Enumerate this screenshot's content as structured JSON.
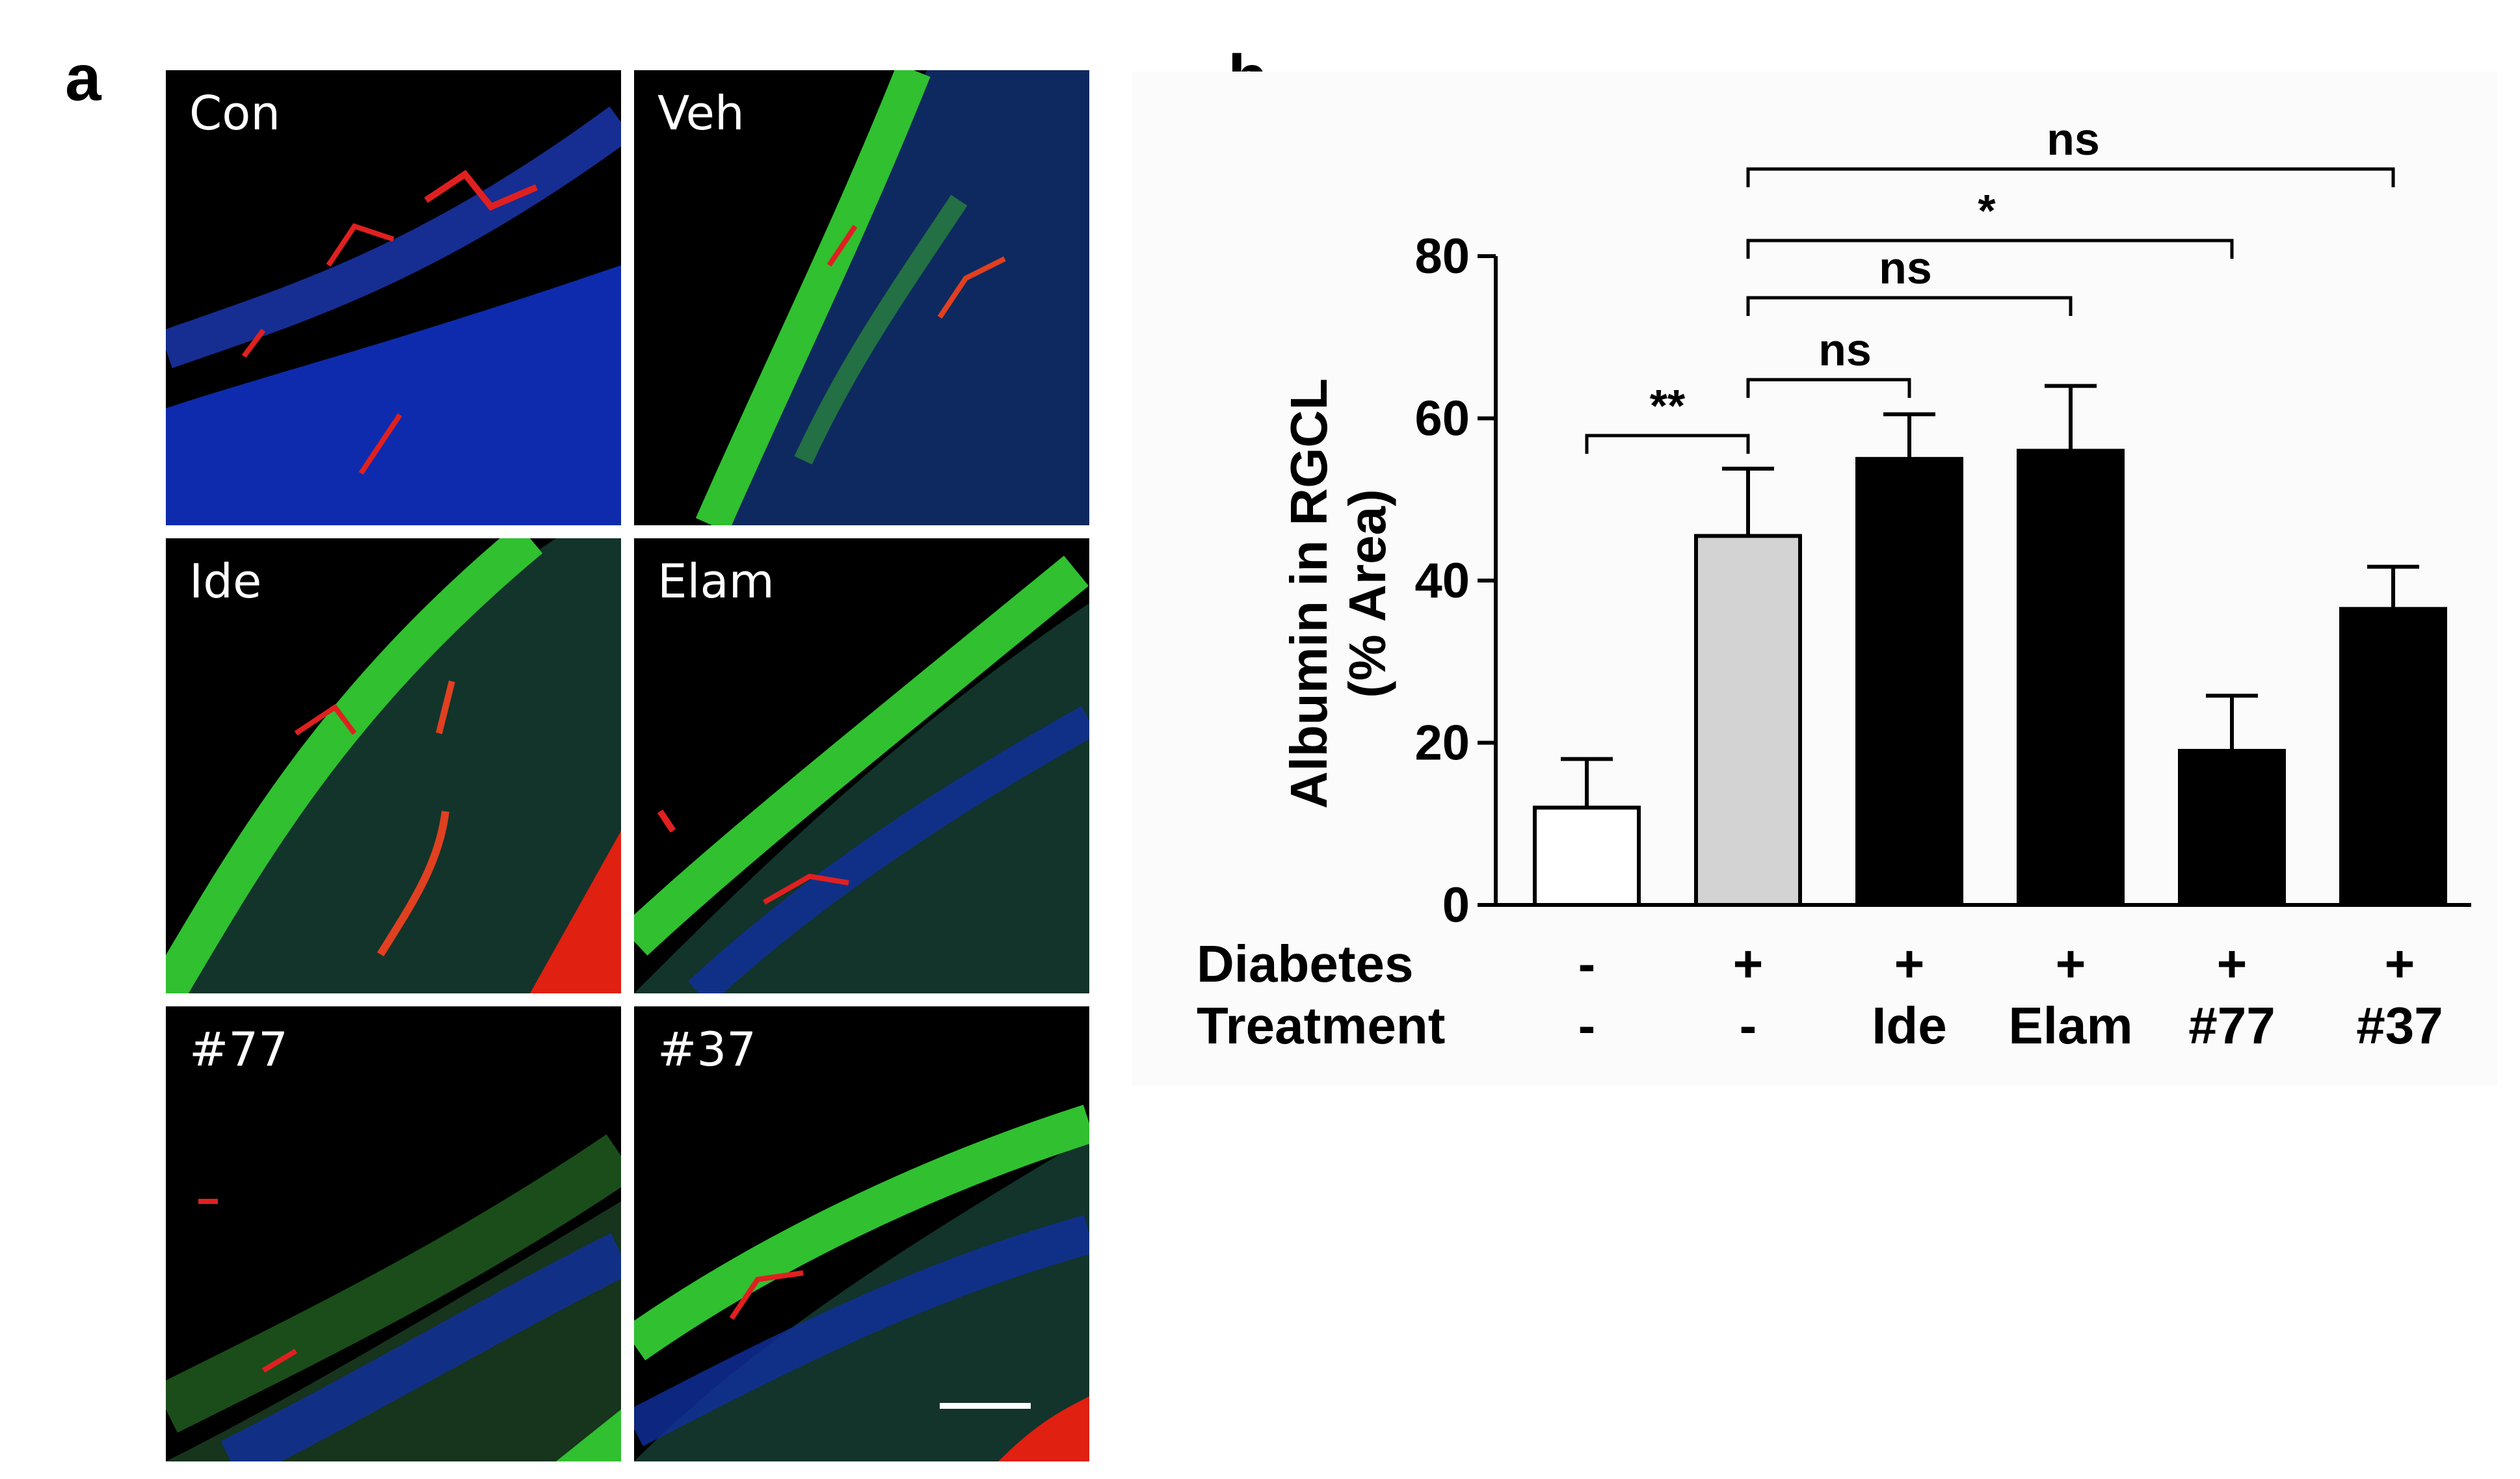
{
  "panel_a": {
    "letter": "a",
    "panels": [
      {
        "label": "Con"
      },
      {
        "label": "Veh"
      },
      {
        "label": "Ide"
      },
      {
        "label": "Elam"
      },
      {
        "label": "#77"
      },
      {
        "label": "#37"
      }
    ]
  },
  "panel_b": {
    "letter": "b"
  },
  "chart_data": {
    "type": "bar",
    "ylabel_lines": [
      "Albumin in RGCL",
      "(% Area)"
    ],
    "ylim": [
      0,
      80
    ],
    "yticks": [
      0,
      20,
      40,
      60,
      80
    ],
    "rows": [
      {
        "label": "Diabetes",
        "values": [
          "-",
          "+",
          "+",
          "+",
          "+",
          "+"
        ]
      },
      {
        "label": "Treatment",
        "values": [
          "-",
          "-",
          "Ide",
          "Elam",
          "#77",
          "#37"
        ]
      }
    ],
    "values": [
      12,
      45.5,
      55,
      56,
      19,
      36.5
    ],
    "errors": [
      6,
      8.3,
      5.5,
      8,
      6.8,
      5.2
    ],
    "bar_colors": [
      "#ffffff",
      "#d3d3d3",
      "#000000",
      "#000000",
      "#000000",
      "#000000"
    ],
    "significance": [
      {
        "from": 0,
        "to": 1,
        "label": "**"
      },
      {
        "from": 1,
        "to": 2,
        "label": "ns"
      },
      {
        "from": 1,
        "to": 3,
        "label": "ns"
      },
      {
        "from": 1,
        "to": 4,
        "label": "*"
      },
      {
        "from": 1,
        "to": 5,
        "label": "ns"
      }
    ]
  }
}
